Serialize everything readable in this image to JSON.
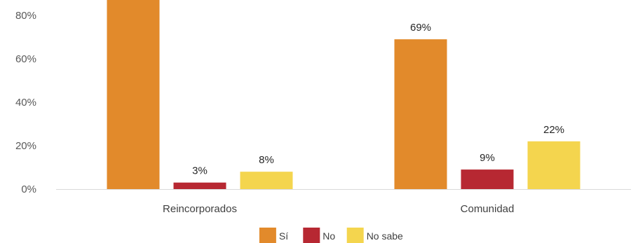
{
  "chart_data": {
    "type": "bar",
    "categories": [
      "Reincorporados",
      "Comunidad"
    ],
    "series": [
      {
        "name": "Sí",
        "values": [
          89,
          69
        ],
        "labels": [
          "",
          "69%"
        ],
        "color": "#E28A2B"
      },
      {
        "name": "No",
        "values": [
          3,
          9
        ],
        "labels": [
          "3%",
          "9%"
        ],
        "color": "#B72832"
      },
      {
        "name": "No sabe",
        "values": [
          8,
          22
        ],
        "labels": [
          "8%",
          "22%"
        ],
        "color": "#F4D54E"
      }
    ],
    "yticks": [
      "0%",
      "20%",
      "40%",
      "60%",
      "80%"
    ],
    "ylim": [
      0,
      80
    ],
    "grid": false,
    "legend_position": "bottom"
  }
}
